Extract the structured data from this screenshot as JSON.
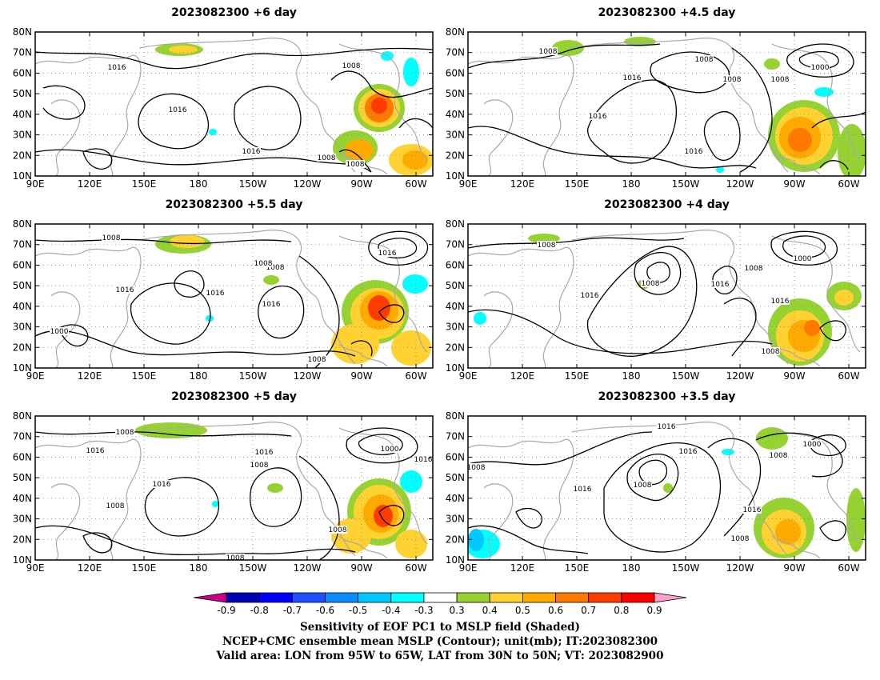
{
  "panels": [
    {
      "title": "2023082300 +6 day"
    },
    {
      "title": "2023082300 +4.5 day"
    },
    {
      "title": "2023082300 +5.5 day"
    },
    {
      "title": "2023082300 +4 day"
    },
    {
      "title": "2023082300 +5 day"
    },
    {
      "title": "2023082300 +3.5 day"
    }
  ],
  "map": {
    "lat_ticks": [
      "80N",
      "70N",
      "60N",
      "50N",
      "40N",
      "30N",
      "20N",
      "10N"
    ],
    "lon_ticks": [
      "90E",
      "120E",
      "150E",
      "180",
      "150W",
      "120W",
      "90W",
      "60W"
    ],
    "lon_range": [
      "90E",
      "45W"
    ],
    "lat_range": [
      "10N",
      "80N"
    ]
  },
  "contours": [
    {
      "panel": 0,
      "labels": [
        "1016",
        "1008",
        "1016",
        "1016",
        "1008",
        "1008"
      ]
    },
    {
      "panel": 1,
      "labels": [
        "1008",
        "1008",
        "1016",
        "1008",
        "1000",
        "1008",
        "1016",
        "1016"
      ]
    },
    {
      "panel": 2,
      "labels": [
        "1008",
        "1016",
        "1008",
        "1016",
        "1016",
        "1016",
        "1000",
        "1008",
        "1008"
      ]
    },
    {
      "panel": 3,
      "labels": [
        "1008",
        "1016",
        "1008",
        "1016",
        "1000",
        "1008",
        "1016",
        "1008"
      ]
    },
    {
      "panel": 4,
      "labels": [
        "1008",
        "1016",
        "1008",
        "1016",
        "1000",
        "1016",
        "1016",
        "1008",
        "1008",
        "1008"
      ]
    },
    {
      "panel": 5,
      "labels": [
        "1016",
        "1008",
        "1016",
        "1008",
        "1016",
        "1000",
        "1008",
        "1016",
        "1008"
      ]
    }
  ],
  "colorbar": {
    "labels": [
      "-0.9",
      "-0.8",
      "-0.7",
      "-0.6",
      "-0.5",
      "-0.4",
      "-0.3",
      "0.3",
      "0.4",
      "0.5",
      "0.6",
      "0.7",
      "0.8",
      "0.9"
    ],
    "colors": [
      "#c8008c",
      "#0000b4",
      "#0000ff",
      "#1e50ff",
      "#0a8cff",
      "#00c8ff",
      "#00ffff",
      "#ffffff",
      "#96d232",
      "#ffd232",
      "#ffaa00",
      "#ff7800",
      "#ff3c00",
      "#ff0000",
      "#ffa0c8"
    ]
  },
  "captions": {
    "line1": "Sensitivity of EOF PC1 to MSLP field (Shaded)",
    "line2": "NCEP+CMC ensemble mean MSLP (Contour); unit(mb); IT:2023082300",
    "line3": "Valid area: LON from 95W to 65W, LAT from 30N to 50N; VT: 2023082900"
  }
}
